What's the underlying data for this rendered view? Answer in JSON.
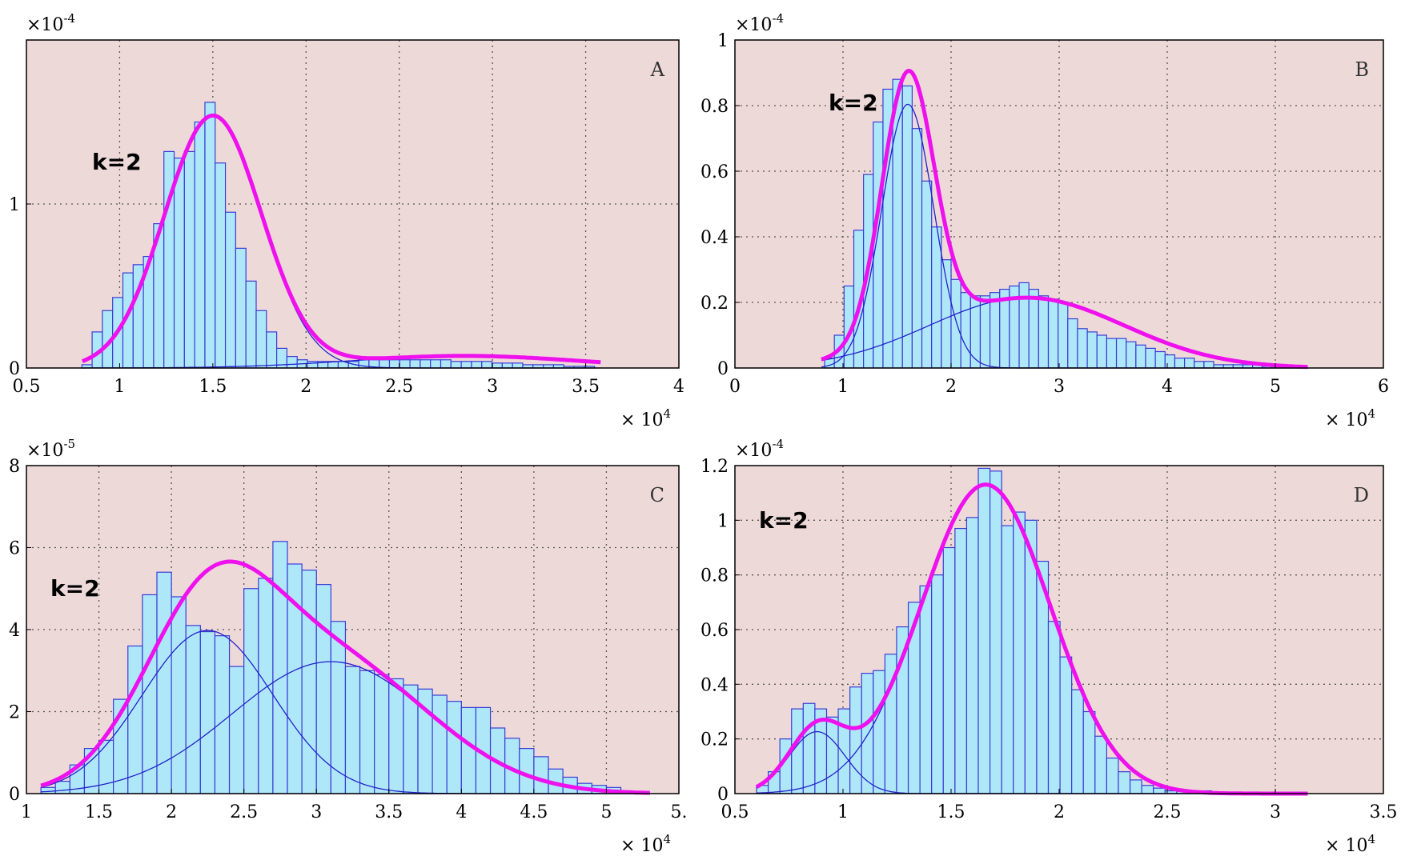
{
  "colors": {
    "plot_background": "#eed9d9",
    "bar_fill": "#aee8f8",
    "bar_edge": "#3b3bd6",
    "mixture_curve": "#ee11ee",
    "component_curve": "#2222cc",
    "grid": "#555555"
  },
  "chart_data": [
    {
      "type": "bar",
      "panel_label": "A",
      "annotation": "k=2",
      "x_multiplier": "× 10",
      "x_multiplier_exponent": "4",
      "y_multiplier": "×10",
      "y_multiplier_exponent": "-4",
      "xlim": [
        0.5,
        4
      ],
      "ylim": [
        0,
        2
      ],
      "xticks": [
        0.5,
        1,
        1.5,
        2,
        2.5,
        3,
        3.5,
        4
      ],
      "xtick_labels": [
        "0.5",
        "1",
        "1.5",
        "2",
        "2.5",
        "3",
        "3.5",
        "4"
      ],
      "yticks": [
        0,
        1
      ],
      "ytick_labels": [
        "0",
        "1"
      ],
      "grid": true,
      "bin_width": 0.055,
      "bins": [
        0.825,
        0.88,
        0.935,
        0.99,
        1.045,
        1.1,
        1.155,
        1.21,
        1.265,
        1.32,
        1.375,
        1.43,
        1.485,
        1.54,
        1.595,
        1.65,
        1.705,
        1.76,
        1.815,
        1.87,
        1.925,
        1.98,
        2.035,
        2.09,
        2.145,
        2.2,
        2.255,
        2.31,
        2.365,
        2.42,
        2.475,
        2.53,
        2.585,
        2.64,
        2.695,
        2.75,
        2.805,
        2.86,
        2.915,
        2.97,
        3.025,
        3.08,
        3.135,
        3.19,
        3.245,
        3.3,
        3.355,
        3.41,
        3.465,
        3.52
      ],
      "values": [
        0.02,
        0.22,
        0.35,
        0.43,
        0.58,
        0.63,
        0.68,
        0.88,
        1.32,
        1.28,
        1.32,
        1.5,
        1.62,
        1.25,
        0.95,
        0.73,
        0.53,
        0.35,
        0.22,
        0.12,
        0.07,
        0.05,
        0.04,
        0.04,
        0.04,
        0.04,
        0.04,
        0.05,
        0.05,
        0.05,
        0.05,
        0.05,
        0.05,
        0.05,
        0.05,
        0.05,
        0.04,
        0.04,
        0.04,
        0.04,
        0.03,
        0.03,
        0.03,
        0.02,
        0.02,
        0.02,
        0.02,
        0.01,
        0.01,
        0.01
      ],
      "components": [
        {
          "weight": 0.9,
          "mean": 1.5,
          "sd": 0.26
        },
        {
          "weight": 0.1,
          "mean": 2.85,
          "sd": 0.6
        }
      ],
      "curve_range": [
        0.8,
        3.58
      ]
    },
    {
      "type": "bar",
      "panel_label": "B",
      "annotation": "k=2",
      "x_multiplier": "× 10",
      "x_multiplier_exponent": "4",
      "y_multiplier": "×10",
      "y_multiplier_exponent": "-4",
      "xlim": [
        0,
        6
      ],
      "ylim": [
        0,
        1
      ],
      "xticks": [
        0,
        1,
        2,
        3,
        4,
        5,
        6
      ],
      "xtick_labels": [
        "0",
        "1",
        "2",
        "3",
        "4",
        "5",
        "6"
      ],
      "yticks": [
        0,
        0.2,
        0.4,
        0.6,
        0.8,
        1
      ],
      "ytick_labels": [
        "0",
        "0.2",
        "0.4",
        "0.6",
        "0.8",
        "1"
      ],
      "grid": true,
      "bin_width": 0.09,
      "bins": [
        0.875,
        0.965,
        1.055,
        1.145,
        1.235,
        1.325,
        1.415,
        1.505,
        1.595,
        1.685,
        1.775,
        1.865,
        1.955,
        2.045,
        2.135,
        2.225,
        2.315,
        2.405,
        2.495,
        2.585,
        2.675,
        2.765,
        2.855,
        2.945,
        3.035,
        3.125,
        3.215,
        3.305,
        3.395,
        3.485,
        3.575,
        3.665,
        3.755,
        3.845,
        3.935,
        4.025,
        4.115,
        4.205,
        4.295,
        4.385,
        4.475,
        4.565,
        4.655,
        4.745,
        4.835,
        4.925,
        5.015,
        5.105,
        5.195
      ],
      "values": [
        0.03,
        0.1,
        0.25,
        0.42,
        0.59,
        0.75,
        0.85,
        0.88,
        0.86,
        0.73,
        0.57,
        0.43,
        0.33,
        0.27,
        0.23,
        0.22,
        0.22,
        0.23,
        0.24,
        0.25,
        0.26,
        0.24,
        0.22,
        0.21,
        0.2,
        0.15,
        0.12,
        0.11,
        0.1,
        0.09,
        0.09,
        0.08,
        0.07,
        0.06,
        0.05,
        0.04,
        0.03,
        0.03,
        0.02,
        0.02,
        0.01,
        0.01,
        0.01,
        0.01,
        0.01,
        0.005,
        0.005,
        0.005,
        0.005
      ],
      "components": [
        {
          "weight": 0.5,
          "mean": 1.6,
          "sd": 0.24
        },
        {
          "weight": 0.5,
          "mean": 2.7,
          "sd": 0.9
        }
      ],
      "curve_range": [
        0.8,
        5.3
      ]
    },
    {
      "type": "bar",
      "panel_label": "C",
      "annotation": "k=2",
      "x_multiplier": "× 10",
      "x_multiplier_exponent": "4",
      "y_multiplier": "×10",
      "y_multiplier_exponent": "-5",
      "xlim": [
        1,
        5.5
      ],
      "ylim": [
        0,
        8
      ],
      "xticks": [
        1,
        1.5,
        2,
        2.5,
        3,
        3.5,
        4,
        4.5,
        5,
        5.5
      ],
      "xtick_labels": [
        "1",
        "1.5",
        "2",
        "2.5",
        "3",
        "3.5",
        "4",
        "4.5",
        "5",
        "5."
      ],
      "yticks": [
        0,
        2,
        4,
        6,
        8
      ],
      "ytick_labels": [
        "0",
        "2",
        "4",
        "6",
        "8"
      ],
      "grid": true,
      "bin_width": 0.1,
      "bins": [
        1.15,
        1.25,
        1.35,
        1.45,
        1.55,
        1.65,
        1.75,
        1.85,
        1.95,
        2.05,
        2.15,
        2.25,
        2.35,
        2.45,
        2.55,
        2.65,
        2.75,
        2.85,
        2.95,
        3.05,
        3.15,
        3.25,
        3.35,
        3.45,
        3.55,
        3.65,
        3.75,
        3.85,
        3.95,
        4.05,
        4.15,
        4.25,
        4.35,
        4.45,
        4.55,
        4.65,
        4.75,
        4.85,
        4.95,
        5.05,
        5.15
      ],
      "values": [
        0.15,
        0.3,
        0.7,
        1.1,
        1.3,
        2.3,
        3.6,
        4.85,
        5.4,
        4.8,
        4.1,
        3.95,
        3.85,
        3.1,
        5.0,
        5.25,
        6.15,
        5.6,
        5.45,
        5.1,
        4.2,
        3.1,
        3.0,
        2.9,
        2.8,
        2.65,
        2.55,
        2.4,
        2.25,
        2.1,
        2.1,
        1.6,
        1.35,
        1.1,
        0.9,
        0.6,
        0.4,
        0.25,
        0.2,
        0.15,
        0.05
      ],
      "components": [
        {
          "weight": 0.45,
          "mean": 2.25,
          "sd": 0.45
        },
        {
          "weight": 0.55,
          "mean": 3.1,
          "sd": 0.68
        }
      ],
      "curve_range": [
        1.1,
        5.3
      ]
    },
    {
      "type": "bar",
      "panel_label": "D",
      "annotation": "k=2",
      "x_multiplier": "× 10",
      "x_multiplier_exponent": "4",
      "y_multiplier": "×10",
      "y_multiplier_exponent": "-4",
      "xlim": [
        0.5,
        3.5
      ],
      "ylim": [
        0,
        1.2
      ],
      "xticks": [
        0.5,
        1,
        1.5,
        2,
        2.5,
        3,
        3.5
      ],
      "xtick_labels": [
        "0.5",
        "1",
        "1.5",
        "2",
        "2.5",
        "3",
        "3.5"
      ],
      "yticks": [
        0,
        0.2,
        0.4,
        0.6,
        0.8,
        1,
        1.2
      ],
      "ytick_labels": [
        "0",
        "0.2",
        "0.4",
        "0.6",
        "0.8",
        "1",
        "1.2"
      ],
      "grid": true,
      "bin_width": 0.054,
      "bins": [
        0.627,
        0.681,
        0.735,
        0.789,
        0.843,
        0.897,
        0.951,
        1.005,
        1.059,
        1.113,
        1.167,
        1.221,
        1.275,
        1.329,
        1.383,
        1.437,
        1.491,
        1.545,
        1.599,
        1.653,
        1.707,
        1.761,
        1.815,
        1.869,
        1.923,
        1.977,
        2.031,
        2.085,
        2.139,
        2.193,
        2.247,
        2.301,
        2.355,
        2.409,
        2.463,
        2.517,
        2.571,
        2.625,
        2.679,
        2.733,
        2.787,
        2.841,
        2.895
      ],
      "values": [
        0.03,
        0.08,
        0.2,
        0.31,
        0.33,
        0.31,
        0.28,
        0.31,
        0.39,
        0.44,
        0.45,
        0.51,
        0.61,
        0.7,
        0.76,
        0.8,
        0.9,
        0.97,
        1.01,
        1.19,
        1.18,
        0.98,
        1.03,
        1.0,
        0.85,
        0.63,
        0.5,
        0.38,
        0.3,
        0.21,
        0.13,
        0.08,
        0.05,
        0.03,
        0.02,
        0.01,
        0.01,
        0.01,
        0.01,
        0.005,
        0.005,
        0.005,
        0.005
      ],
      "components": [
        {
          "weight": 0.08,
          "mean": 0.88,
          "sd": 0.13
        },
        {
          "weight": 0.92,
          "mean": 1.66,
          "sd": 0.3
        }
      ],
      "curve_range": [
        0.6,
        3.15
      ]
    }
  ]
}
